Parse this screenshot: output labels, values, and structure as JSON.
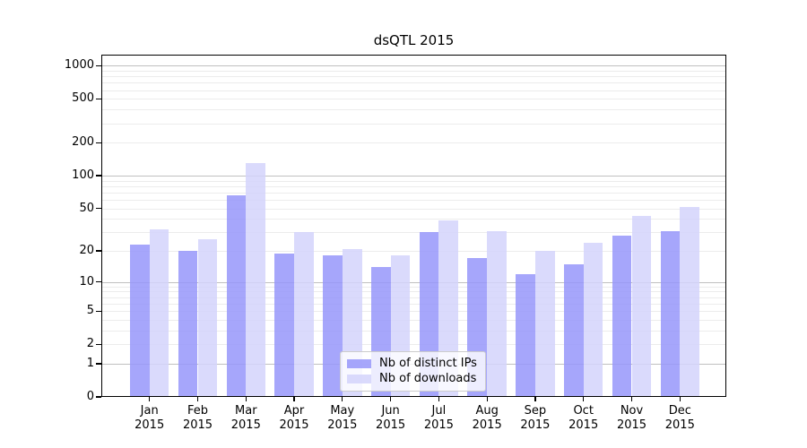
{
  "title": "dsQTL 2015",
  "chart_data": {
    "type": "bar",
    "title": "dsQTL 2015",
    "categories": [
      "Jan 2015",
      "Feb 2015",
      "Mar 2015",
      "Apr 2015",
      "May 2015",
      "Jun 2015",
      "Jul 2015",
      "Aug 2015",
      "Sep 2015",
      "Oct 2015",
      "Nov 2015",
      "Dec 2015"
    ],
    "series": [
      {
        "name": "Nb of distinct IPs",
        "color": "#a6a6fb",
        "fill": "rgba(150,150,250,0.85)",
        "values": [
          23,
          20,
          66,
          19,
          18,
          14,
          30,
          17,
          12,
          15,
          28,
          31
        ]
      },
      {
        "name": "Nb of downloads",
        "color": "#d9d9fc",
        "fill": "rgba(211,211,252,0.85)",
        "values": [
          32,
          26,
          130,
          30,
          21,
          18,
          39,
          31,
          20,
          24,
          43,
          52
        ]
      }
    ],
    "xlabel": "",
    "ylabel": "",
    "yscale": "log1p",
    "ylim": [
      0,
      1260
    ],
    "yticks": [
      0,
      1,
      2,
      5,
      10,
      20,
      50,
      100,
      200,
      500,
      1000
    ],
    "minor_gridlines": [
      2,
      3,
      4,
      5,
      6,
      7,
      8,
      9,
      20,
      30,
      40,
      50,
      60,
      70,
      80,
      90,
      200,
      300,
      400,
      500,
      600,
      700,
      800,
      900
    ],
    "major_gridlines": [
      1,
      10,
      100,
      1000
    ],
    "grid": true,
    "legend_position": "lower center"
  },
  "colors": {
    "background": "#ffffff",
    "spine": "#000000",
    "grid_major": "#c0c0c0",
    "grid_minor": "#ececec",
    "legend_border": "#cccccc",
    "text": "#000000"
  }
}
